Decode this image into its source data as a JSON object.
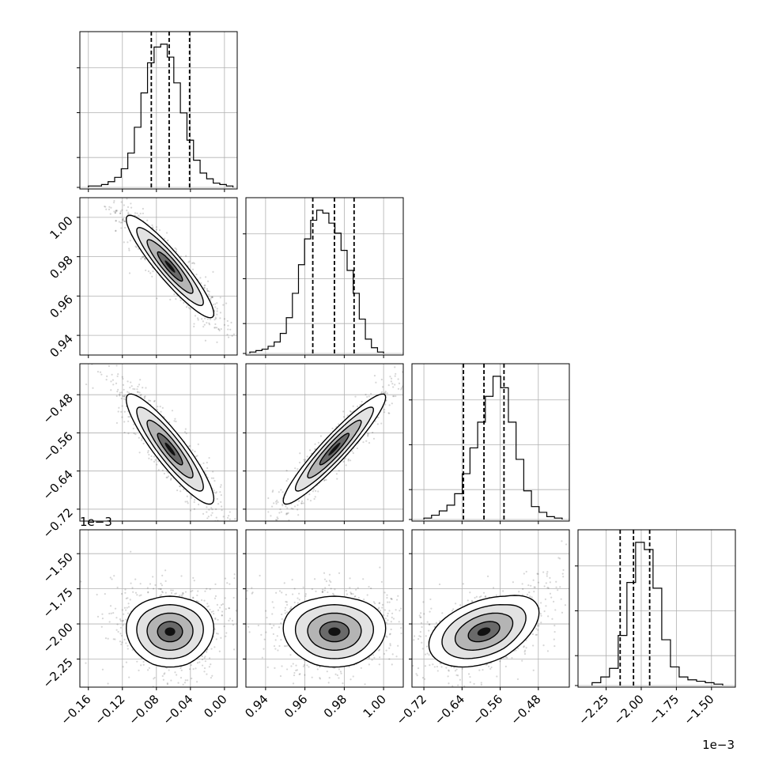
{
  "chart_data": {
    "type": "corner",
    "parameters": 4,
    "grid": true,
    "quantile_lines": "dashed",
    "x_ticks": [
      [
        "−0.16",
        "−0.12",
        "−0.08",
        "−0.04",
        "0.00"
      ],
      [
        "0.94",
        "0.96",
        "0.98",
        "1.00"
      ],
      [
        "−0.72",
        "−0.64",
        "−0.56",
        "−0.48"
      ],
      [
        "−2.25",
        "−2.00",
        "−1.75",
        "−1.50"
      ]
    ],
    "y_ticks": {
      "row1": [
        "0.94",
        "0.96",
        "0.98",
        "1.00"
      ],
      "row2": [
        "−0.72",
        "−0.64",
        "−0.56",
        "−0.48"
      ],
      "row3": [
        "−2.25",
        "−2.00",
        "−1.75",
        "−1.50"
      ]
    },
    "offset_labels": {
      "y_row3": "1e−3",
      "x_col3": "1e−3"
    },
    "params": [
      {
        "xlim": [
          -0.17,
          0.015
        ],
        "hist_range": [
          -0.16,
          0.01
        ],
        "quantiles": [
          -0.086,
          -0.065,
          -0.041
        ],
        "hist": [
          1,
          1,
          2,
          4,
          7,
          13,
          24,
          42,
          66,
          87,
          98,
          100,
          91,
          73,
          52,
          33,
          19,
          10,
          6,
          3,
          2,
          1
        ]
      },
      {
        "xlim": [
          0.93,
          1.01
        ],
        "hist_range": [
          0.932,
          1.0
        ],
        "quantiles": [
          0.964,
          0.975,
          0.985
        ],
        "hist": [
          1,
          2,
          3,
          5,
          8,
          14,
          25,
          42,
          62,
          80,
          93,
          100,
          98,
          91,
          84,
          72,
          58,
          42,
          24,
          10,
          4,
          1
        ]
      },
      {
        "xlim": [
          -0.745,
          -0.415
        ],
        "hist_range": [
          -0.72,
          -0.43
        ],
        "quantiles": [
          -0.637,
          -0.594,
          -0.552
        ],
        "hist": [
          1,
          3,
          6,
          10,
          18,
          32,
          50,
          68,
          86,
          100,
          92,
          68,
          42,
          20,
          9,
          5,
          2,
          1
        ]
      },
      {
        "xlim": [
          -2.45,
          -1.33
        ],
        "hist_range": [
          -2.35,
          -1.42
        ],
        "quantiles": [
          -2.15,
          -2.055,
          -1.94
        ],
        "hist": [
          2,
          6,
          12,
          35,
          72,
          100,
          95,
          68,
          32,
          13,
          6,
          4,
          3,
          2,
          1
        ]
      }
    ],
    "pairs": [
      {
        "row": 1,
        "col": 0,
        "mean": [
          -0.064,
          0.975
        ],
        "sd": [
          0.0245,
          0.0124
        ],
        "rho": -0.92
      },
      {
        "row": 2,
        "col": 0,
        "mean": [
          -0.064,
          -0.594
        ],
        "sd": [
          0.0245,
          0.055
        ],
        "rho": -0.9
      },
      {
        "row": 2,
        "col": 1,
        "mean": [
          0.975,
          -0.594
        ],
        "sd": [
          0.0124,
          0.055
        ],
        "rho": 0.94
      },
      {
        "row": 3,
        "col": 0,
        "mean": [
          -0.064,
          -2.055
        ],
        "sd": [
          0.0245,
          0.12
        ],
        "rho": 0.0
      },
      {
        "row": 3,
        "col": 1,
        "mean": [
          0.975,
          -2.055
        ],
        "sd": [
          0.0124,
          0.12
        ],
        "rho": 0.0
      },
      {
        "row": 3,
        "col": 2,
        "mean": [
          -0.594,
          -2.055
        ],
        "sd": [
          0.055,
          0.12
        ],
        "rho": 0.4
      }
    ]
  }
}
